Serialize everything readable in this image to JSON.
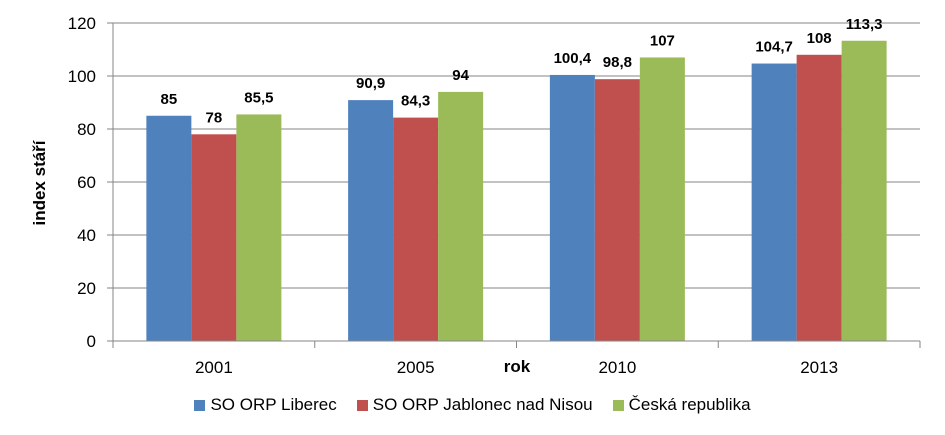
{
  "chart_data": {
    "type": "bar",
    "categories": [
      "2001",
      "2005",
      "2010",
      "2013"
    ],
    "series": [
      {
        "name": "SO ORP Liberec",
        "values": [
          85,
          90.9,
          100.4,
          104.7
        ],
        "labels": [
          "85",
          "90,9",
          "100,4",
          "104,7"
        ],
        "color": "#4F81BD"
      },
      {
        "name": "SO ORP Jablonec nad Nisou",
        "values": [
          78,
          84.3,
          98.8,
          108
        ],
        "labels": [
          "78",
          "84,3",
          "98,8",
          "108"
        ],
        "color": "#C0504D"
      },
      {
        "name": "Česká republika",
        "values": [
          85.5,
          94,
          107,
          113.3
        ],
        "labels": [
          "85,5",
          "94",
          "107",
          "113,3"
        ],
        "color": "#9BBB59"
      }
    ],
    "xlabel": "rok",
    "ylabel": "index stáří",
    "ylim": [
      0,
      120
    ],
    "yticks": [
      "0",
      "20",
      "40",
      "60",
      "80",
      "100",
      "120"
    ],
    "grid": true,
    "legend_position": "bottom"
  }
}
